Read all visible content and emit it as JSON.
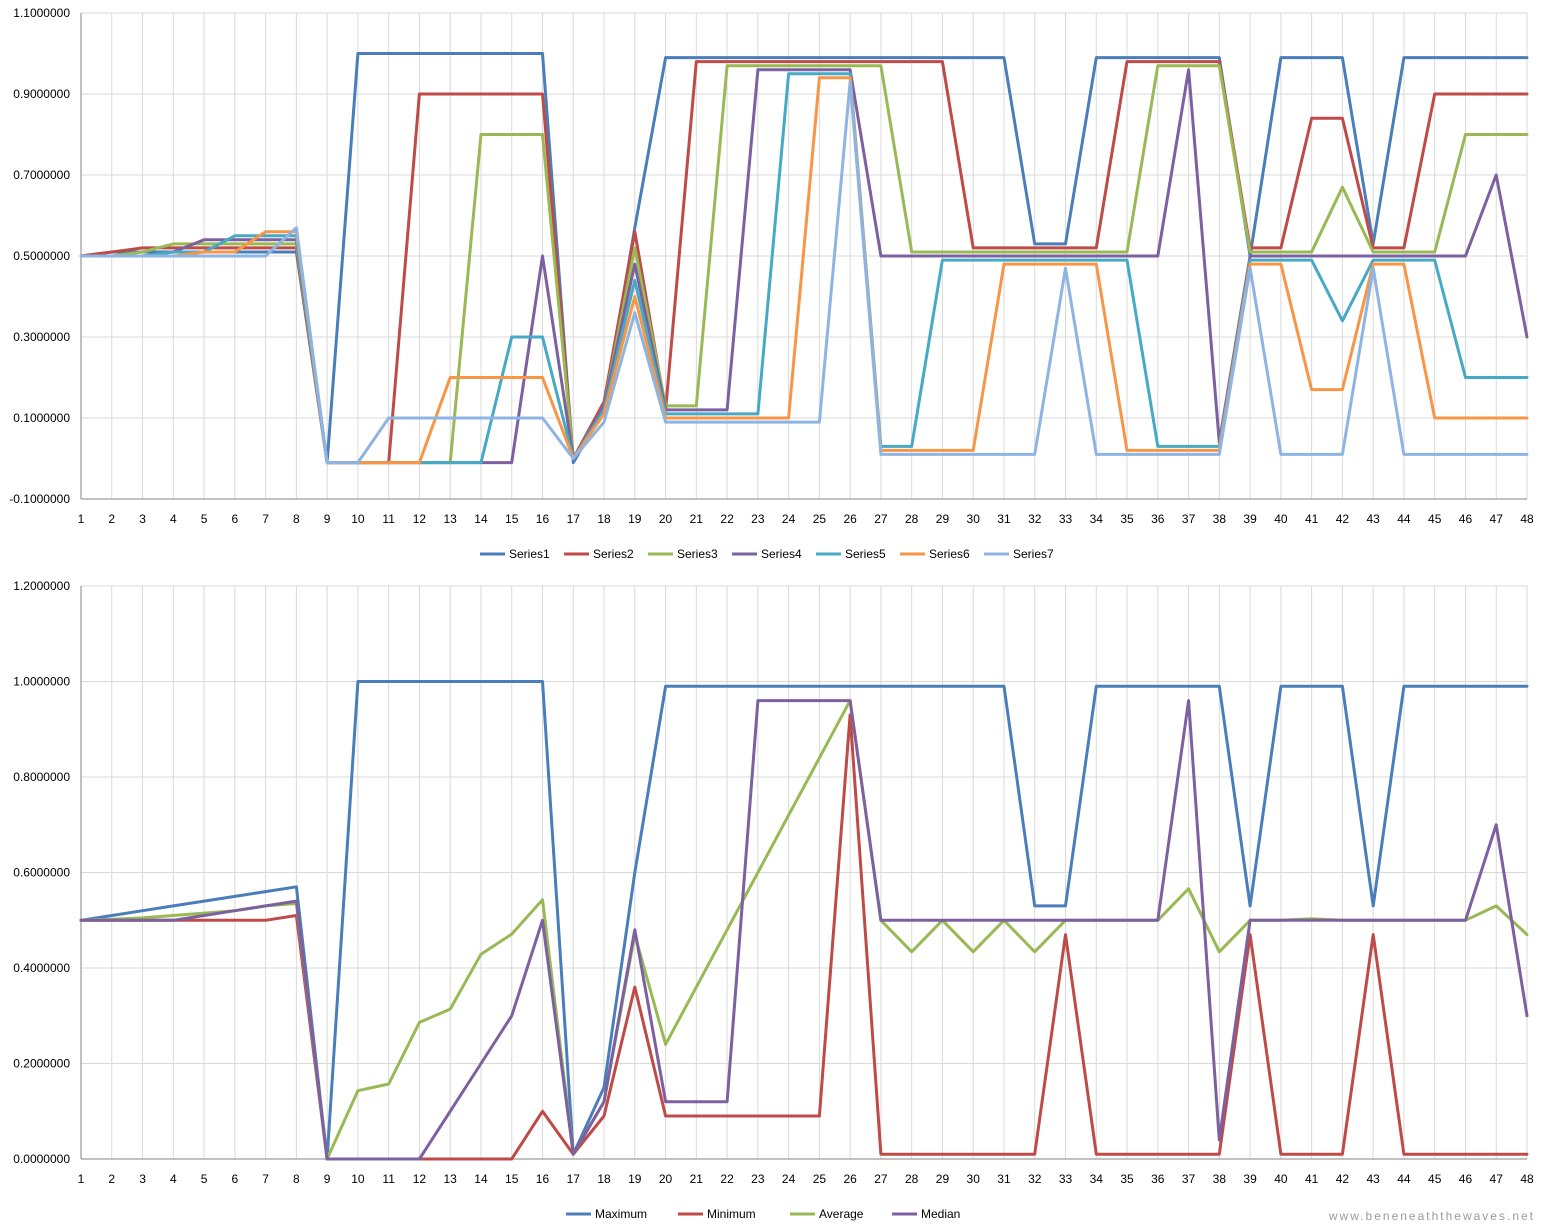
{
  "colors": {
    "grid": "#d9d9d9",
    "axis": "#868686",
    "Series1": "#4a7ebb",
    "Series2": "#be4b48",
    "Series3": "#98b954",
    "Series4": "#7d60a0",
    "Series5": "#46aac5",
    "Series6": "#f79646",
    "Series7": "#8eb4e3",
    "Maximum": "#4a7ebb",
    "Minimum": "#be4b48",
    "Average": "#98b954",
    "Median": "#7d60a0"
  },
  "watermark": "www.beneneaththewaves.net",
  "chart_data": [
    {
      "type": "line",
      "title": "",
      "xlabel": "",
      "ylabel": "",
      "x": [
        1,
        2,
        3,
        4,
        5,
        6,
        7,
        8,
        9,
        10,
        11,
        12,
        13,
        14,
        15,
        16,
        17,
        18,
        19,
        20,
        21,
        22,
        23,
        24,
        25,
        26,
        27,
        28,
        29,
        30,
        31,
        32,
        33,
        34,
        35,
        36,
        37,
        38,
        39,
        40,
        41,
        42,
        43,
        44,
        45,
        46,
        47,
        48
      ],
      "ylim": [
        -0.1,
        1.1
      ],
      "yticks": [
        "-0.1000000",
        "0.1000000",
        "0.3000000",
        "0.5000000",
        "0.7000000",
        "0.9000000",
        "1.1000000"
      ],
      "ytick_values": [
        -0.1,
        0.1,
        0.3,
        0.5,
        0.7,
        0.9,
        1.1
      ],
      "grid": true,
      "legend_position": "bottom",
      "series": [
        {
          "name": "Series1",
          "values": [
            0.5,
            0.51,
            0.51,
            0.51,
            0.51,
            0.51,
            0.51,
            0.51,
            -0.01,
            1.0,
            1.0,
            1.0,
            1.0,
            1.0,
            1.0,
            1.0,
            -0.01,
            0.12,
            0.57,
            0.99,
            0.99,
            0.99,
            0.99,
            0.99,
            0.99,
            0.99,
            0.99,
            0.99,
            0.99,
            0.99,
            0.99,
            0.53,
            0.53,
            0.99,
            0.99,
            0.99,
            0.99,
            0.99,
            0.5,
            0.99,
            0.99,
            0.99,
            0.53,
            0.99,
            0.99,
            0.99,
            0.99,
            0.99
          ]
        },
        {
          "name": "Series2",
          "values": [
            0.5,
            0.51,
            0.52,
            0.52,
            0.52,
            0.52,
            0.52,
            0.52,
            -0.01,
            -0.01,
            -0.01,
            0.9,
            0.9,
            0.9,
            0.9,
            0.9,
            0.0,
            0.14,
            0.56,
            0.12,
            0.98,
            0.98,
            0.98,
            0.98,
            0.98,
            0.98,
            0.98,
            0.98,
            0.98,
            0.52,
            0.52,
            0.52,
            0.52,
            0.52,
            0.98,
            0.98,
            0.98,
            0.98,
            0.52,
            0.52,
            0.84,
            0.84,
            0.52,
            0.52,
            0.9,
            0.9,
            0.9,
            0.9
          ]
        },
        {
          "name": "Series3",
          "values": [
            0.5,
            0.5,
            0.51,
            0.53,
            0.53,
            0.53,
            0.53,
            0.53,
            -0.01,
            -0.01,
            -0.01,
            -0.01,
            -0.01,
            0.8,
            0.8,
            0.8,
            0.0,
            0.13,
            0.52,
            0.13,
            0.13,
            0.97,
            0.97,
            0.97,
            0.97,
            0.97,
            0.97,
            0.51,
            0.51,
            0.51,
            0.51,
            0.51,
            0.51,
            0.51,
            0.51,
            0.97,
            0.97,
            0.97,
            0.51,
            0.51,
            0.51,
            0.67,
            0.51,
            0.51,
            0.51,
            0.8,
            0.8,
            0.8
          ]
        },
        {
          "name": "Series4",
          "values": [
            0.5,
            0.5,
            0.5,
            0.51,
            0.54,
            0.54,
            0.54,
            0.54,
            -0.01,
            -0.01,
            -0.01,
            -0.01,
            -0.01,
            -0.01,
            -0.01,
            0.5,
            0.0,
            0.13,
            0.48,
            0.12,
            0.12,
            0.12,
            0.96,
            0.96,
            0.96,
            0.96,
            0.5,
            0.5,
            0.5,
            0.5,
            0.5,
            0.5,
            0.5,
            0.5,
            0.5,
            0.5,
            0.96,
            0.04,
            0.5,
            0.5,
            0.5,
            0.5,
            0.5,
            0.5,
            0.5,
            0.5,
            0.7,
            0.3
          ]
        },
        {
          "name": "Series5",
          "values": [
            0.5,
            0.5,
            0.5,
            0.51,
            0.51,
            0.55,
            0.55,
            0.55,
            -0.01,
            -0.01,
            -0.01,
            -0.01,
            -0.01,
            -0.01,
            0.3,
            0.3,
            0.0,
            0.12,
            0.44,
            0.11,
            0.11,
            0.11,
            0.11,
            0.95,
            0.95,
            0.95,
            0.03,
            0.03,
            0.49,
            0.49,
            0.49,
            0.49,
            0.49,
            0.49,
            0.49,
            0.03,
            0.03,
            0.03,
            0.49,
            0.49,
            0.49,
            0.34,
            0.49,
            0.49,
            0.49,
            0.2,
            0.2,
            0.2
          ]
        },
        {
          "name": "Series6",
          "values": [
            0.5,
            0.5,
            0.5,
            0.5,
            0.51,
            0.51,
            0.56,
            0.56,
            -0.01,
            -0.01,
            -0.01,
            -0.01,
            0.2,
            0.2,
            0.2,
            0.2,
            0.0,
            0.11,
            0.4,
            0.1,
            0.1,
            0.1,
            0.1,
            0.1,
            0.94,
            0.94,
            0.02,
            0.02,
            0.02,
            0.02,
            0.48,
            0.48,
            0.48,
            0.48,
            0.02,
            0.02,
            0.02,
            0.02,
            0.48,
            0.48,
            0.17,
            0.17,
            0.48,
            0.48,
            0.1,
            0.1,
            0.1,
            0.1
          ]
        },
        {
          "name": "Series7",
          "values": [
            0.5,
            0.5,
            0.5,
            0.5,
            0.5,
            0.5,
            0.5,
            0.57,
            -0.01,
            -0.01,
            0.1,
            0.1,
            0.1,
            0.1,
            0.1,
            0.1,
            0.0,
            0.09,
            0.36,
            0.09,
            0.09,
            0.09,
            0.09,
            0.09,
            0.09,
            0.93,
            0.01,
            0.01,
            0.01,
            0.01,
            0.01,
            0.01,
            0.47,
            0.01,
            0.01,
            0.01,
            0.01,
            0.01,
            0.47,
            0.01,
            0.01,
            0.01,
            0.47,
            0.01,
            0.01,
            0.01,
            0.01,
            0.01
          ]
        }
      ]
    },
    {
      "type": "line",
      "title": "",
      "xlabel": "",
      "ylabel": "",
      "x": [
        1,
        2,
        3,
        4,
        5,
        6,
        7,
        8,
        9,
        10,
        11,
        12,
        13,
        14,
        15,
        16,
        17,
        18,
        19,
        20,
        21,
        22,
        23,
        24,
        25,
        26,
        27,
        28,
        29,
        30,
        31,
        32,
        33,
        34,
        35,
        36,
        37,
        38,
        39,
        40,
        41,
        42,
        43,
        44,
        45,
        46,
        47,
        48
      ],
      "ylim": [
        0.0,
        1.2
      ],
      "yticks": [
        "0.0000000",
        "0.2000000",
        "0.4000000",
        "0.6000000",
        "0.8000000",
        "1.0000000",
        "1.2000000"
      ],
      "ytick_values": [
        0.0,
        0.2,
        0.4,
        0.6,
        0.8,
        1.0,
        1.2
      ],
      "grid": true,
      "legend_position": "bottom",
      "series": [
        {
          "name": "Maximum",
          "values": [
            0.5,
            0.51,
            0.52,
            0.53,
            0.54,
            0.55,
            0.56,
            0.57,
            0.0,
            1.0,
            1.0,
            1.0,
            1.0,
            1.0,
            1.0,
            1.0,
            0.01,
            0.15,
            0.6,
            0.99,
            0.99,
            0.99,
            0.99,
            0.99,
            0.99,
            0.99,
            0.99,
            0.99,
            0.99,
            0.99,
            0.99,
            0.53,
            0.53,
            0.99,
            0.99,
            0.99,
            0.99,
            0.99,
            0.53,
            0.99,
            0.99,
            0.99,
            0.53,
            0.99,
            0.99,
            0.99,
            0.99,
            0.99
          ]
        },
        {
          "name": "Minimum",
          "values": [
            0.5,
            0.5,
            0.5,
            0.5,
            0.5,
            0.5,
            0.5,
            0.51,
            0.0,
            0.0,
            0.0,
            0.0,
            0.0,
            0.0,
            0.0,
            0.1,
            0.01,
            0.09,
            0.36,
            0.09,
            0.09,
            0.09,
            0.09,
            0.09,
            0.09,
            0.93,
            0.01,
            0.01,
            0.01,
            0.01,
            0.01,
            0.01,
            0.47,
            0.01,
            0.01,
            0.01,
            0.01,
            0.01,
            0.47,
            0.01,
            0.01,
            0.01,
            0.47,
            0.01,
            0.01,
            0.01,
            0.01,
            0.01
          ]
        },
        {
          "name": "Average",
          "values": [
            0.5,
            0.502,
            0.505,
            0.51,
            0.515,
            0.52,
            0.53,
            0.535,
            0.0,
            0.143,
            0.157,
            0.286,
            0.314,
            0.429,
            0.471,
            0.543,
            0.01,
            0.12,
            0.47,
            0.24,
            0.36,
            0.48,
            0.6,
            0.72,
            0.84,
            0.96,
            0.5,
            0.434,
            0.5,
            0.434,
            0.5,
            0.434,
            0.5,
            0.5,
            0.5,
            0.5,
            0.566,
            0.434,
            0.5,
            0.5,
            0.503,
            0.5,
            0.5,
            0.5,
            0.5,
            0.5,
            0.53,
            0.47
          ]
        },
        {
          "name": "Median",
          "values": [
            0.5,
            0.5,
            0.5,
            0.5,
            0.51,
            0.52,
            0.53,
            0.54,
            0.0,
            0.0,
            0.0,
            0.0,
            0.1,
            0.2,
            0.3,
            0.5,
            0.01,
            0.12,
            0.48,
            0.12,
            0.12,
            0.12,
            0.96,
            0.96,
            0.96,
            0.96,
            0.5,
            0.5,
            0.5,
            0.5,
            0.5,
            0.5,
            0.5,
            0.5,
            0.5,
            0.5,
            0.96,
            0.04,
            0.5,
            0.5,
            0.5,
            0.5,
            0.5,
            0.5,
            0.5,
            0.5,
            0.7,
            0.3
          ]
        }
      ]
    }
  ]
}
